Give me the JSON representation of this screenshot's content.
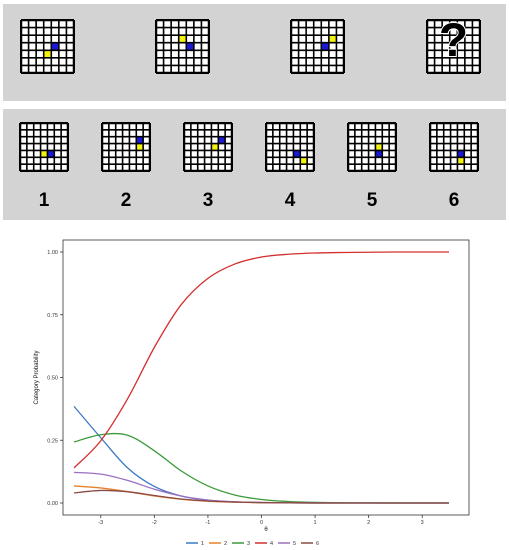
{
  "colors": {
    "panel": "#d3d3d3",
    "blue_cell": "#1a1ad6",
    "yellow_cell": "#f3f30d",
    "grid_line": "#000000",
    "grid_bg": "#ffffff"
  },
  "matrix": {
    "items": [
      {
        "blue": [
          3,
          4
        ],
        "yellow": [
          4,
          3
        ]
      },
      {
        "blue": [
          3,
          4
        ],
        "yellow": [
          2,
          3
        ]
      },
      {
        "blue": [
          3,
          4
        ],
        "yellow": [
          2,
          5
        ]
      },
      {
        "missing": true,
        "symbol": "?"
      }
    ]
  },
  "options": [
    {
      "label": "1",
      "blue": [
        4,
        4
      ],
      "yellow": [
        4,
        3
      ]
    },
    {
      "label": "2",
      "blue": [
        2,
        5
      ],
      "yellow": [
        3,
        5
      ]
    },
    {
      "label": "3",
      "blue": [
        2,
        5
      ],
      "yellow": [
        3,
        4
      ]
    },
    {
      "label": "4",
      "blue": [
        4,
        4
      ],
      "yellow": [
        5,
        5
      ]
    },
    {
      "label": "5",
      "blue": [
        4,
        4
      ],
      "yellow": [
        3,
        4
      ]
    },
    {
      "label": "6",
      "blue": [
        4,
        4
      ],
      "yellow": [
        5,
        4
      ]
    }
  ],
  "chart_data": {
    "type": "line",
    "xlabel": "θ",
    "ylabel": "Category Probability",
    "xlim": [
      -3.5,
      3.5
    ],
    "ylim": [
      0,
      1
    ],
    "xticks": [
      "-3",
      "-2",
      "-1",
      "0",
      "1",
      "2",
      "3"
    ],
    "yticks": [
      "0.00",
      "0.25",
      "0.50",
      "0.75",
      "1.00"
    ],
    "legend_position": "bottom",
    "x": [
      -3.5,
      -3.0,
      -2.5,
      -2.0,
      -1.5,
      -1.0,
      -0.5,
      0.0,
      0.5,
      1.0,
      1.5,
      2.0,
      2.5,
      3.0,
      3.5
    ],
    "series": [
      {
        "name": "1",
        "color": "#3b78c3",
        "values": [
          0.385,
          0.26,
          0.14,
          0.066,
          0.028,
          0.011,
          0.004,
          0.0015,
          0.0005,
          0.0002,
          0.0001,
          0.0,
          0.0,
          0.0,
          0.0
        ]
      },
      {
        "name": "2",
        "color": "#e8812b",
        "values": [
          0.068,
          0.06,
          0.045,
          0.028,
          0.015,
          0.007,
          0.003,
          0.001,
          0.0004,
          0.0001,
          0.0,
          0.0,
          0.0,
          0.0,
          0.0
        ]
      },
      {
        "name": "3",
        "color": "#3a9a3a",
        "values": [
          0.243,
          0.272,
          0.27,
          0.208,
          0.128,
          0.068,
          0.032,
          0.014,
          0.006,
          0.0025,
          0.001,
          0.0004,
          0.0002,
          0.0001,
          0.0
        ]
      },
      {
        "name": "4",
        "color": "#d32f2f",
        "values": [
          0.14,
          0.248,
          0.415,
          0.62,
          0.79,
          0.895,
          0.952,
          0.98,
          0.991,
          0.996,
          0.998,
          0.999,
          1.0,
          1.0,
          1.0
        ]
      },
      {
        "name": "5",
        "color": "#9b6fc1",
        "values": [
          0.122,
          0.115,
          0.09,
          0.055,
          0.028,
          0.012,
          0.005,
          0.002,
          0.0008,
          0.0003,
          0.0001,
          0.0,
          0.0,
          0.0,
          0.0
        ]
      },
      {
        "name": "6",
        "color": "#8a4a46",
        "values": [
          0.04,
          0.05,
          0.045,
          0.03,
          0.016,
          0.008,
          0.004,
          0.0018,
          0.0008,
          0.0003,
          0.0001,
          0.0,
          0.0,
          0.0,
          0.0
        ]
      }
    ]
  }
}
